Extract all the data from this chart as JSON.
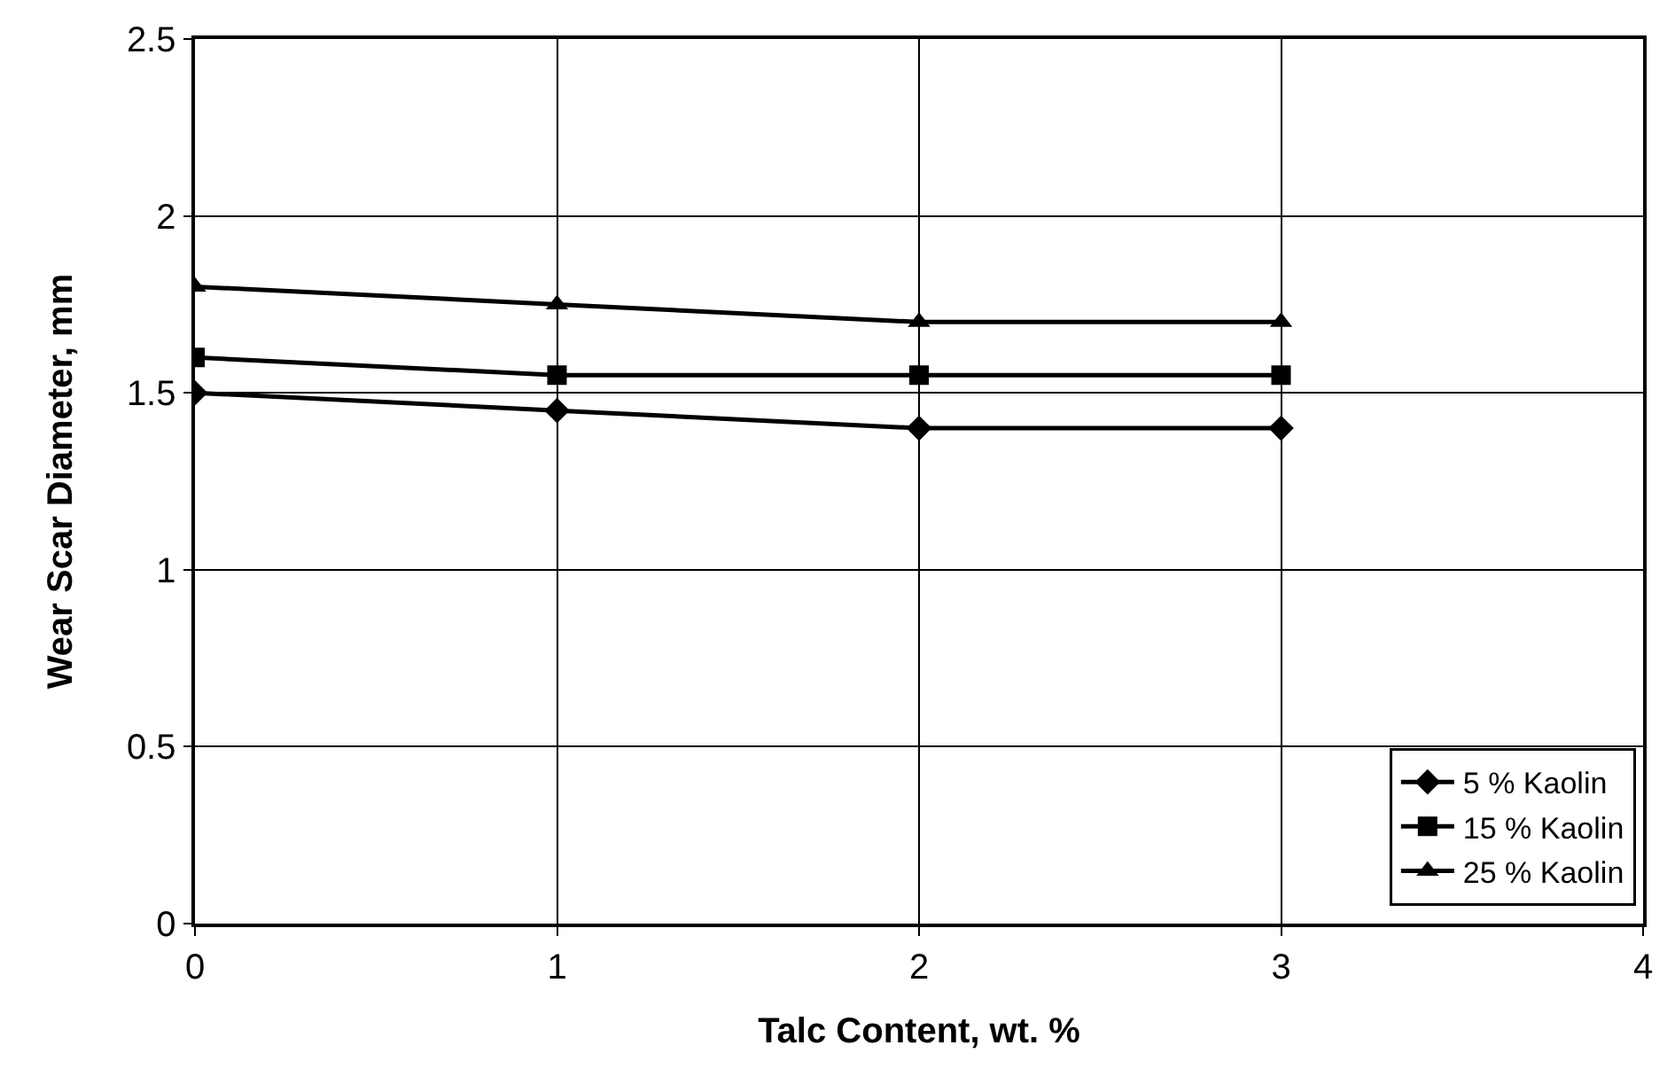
{
  "chart_data": {
    "type": "line",
    "xlabel": "Talc Content, wt. %",
    "ylabel": "Wear Scar Diameter, mm",
    "x": [
      0,
      1,
      2,
      3
    ],
    "series": [
      {
        "name": "5 % Kaolin",
        "color": "#000000",
        "marker": "diamond",
        "values": [
          1.5,
          1.45,
          1.4,
          1.4
        ]
      },
      {
        "name": "15 % Kaolin",
        "color": "#000000",
        "marker": "square",
        "values": [
          1.6,
          1.55,
          1.55,
          1.55
        ]
      },
      {
        "name": "25 % Kaolin",
        "color": "#000000",
        "marker": "triangle",
        "values": [
          1.8,
          1.75,
          1.7,
          1.7
        ]
      }
    ],
    "xlim": [
      0,
      4
    ],
    "xticks": [
      0,
      1,
      2,
      3,
      4
    ],
    "ylim": [
      0,
      2.5
    ],
    "yticks": [
      0,
      0.5,
      1,
      1.5,
      2,
      2.5
    ],
    "grid": true,
    "legend": "bottom right",
    "line_style": "solid"
  }
}
